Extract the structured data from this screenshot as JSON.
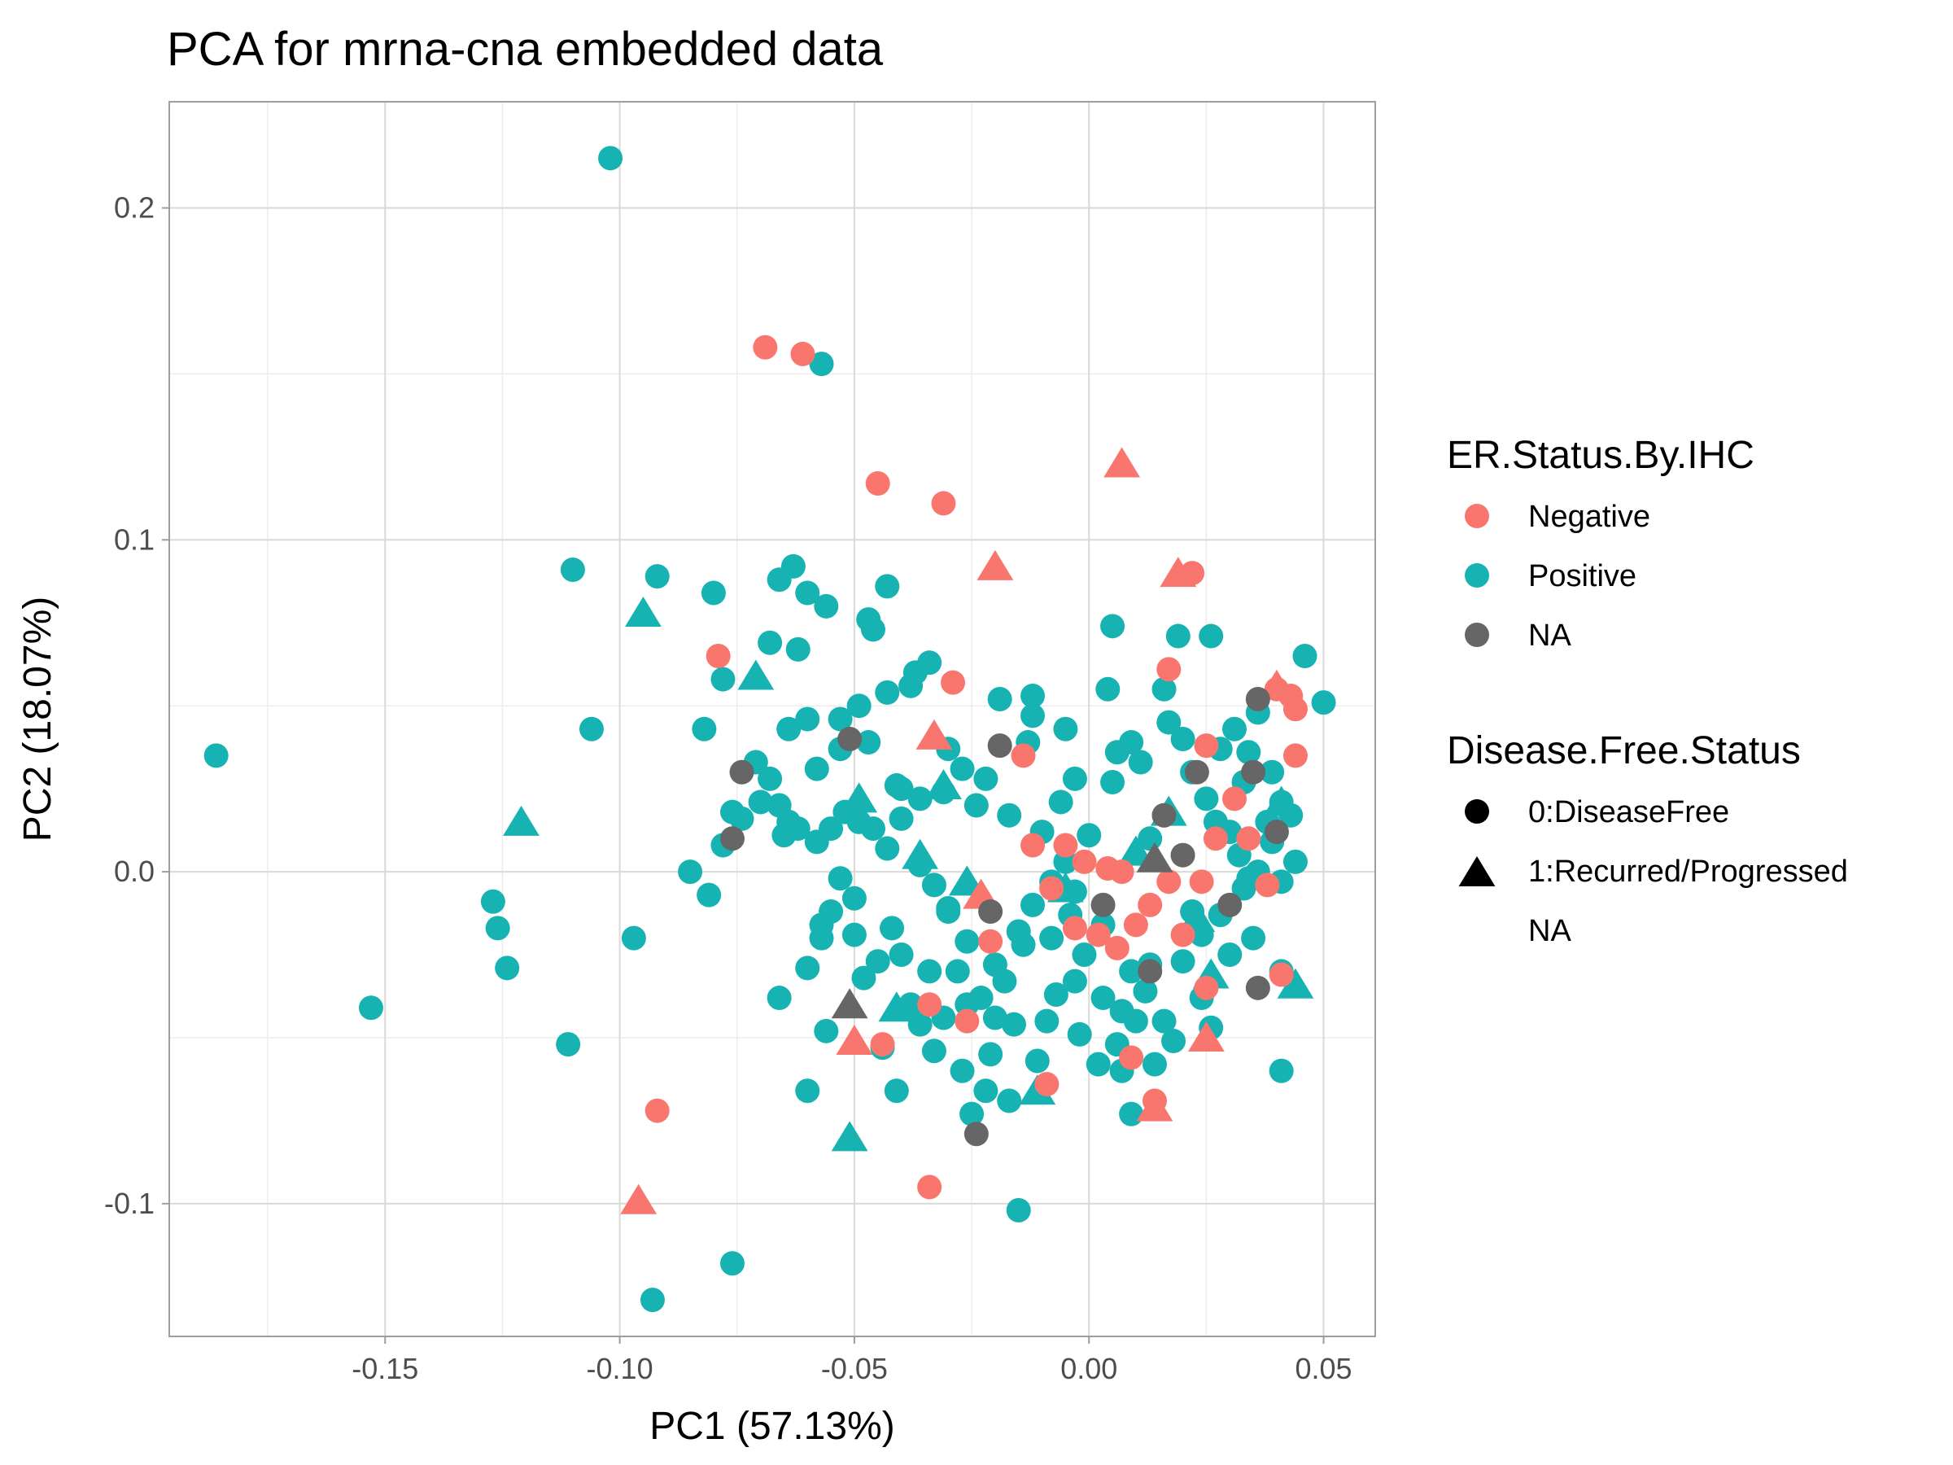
{
  "chart_data": {
    "type": "scatter",
    "title": "PCA for mrna-cna embedded data",
    "xlabel": "PC1 (57.13%)",
    "ylabel": "PC2 (18.07%)",
    "xlim": [
      -0.196,
      0.061
    ],
    "ylim": [
      -0.14,
      0.232
    ],
    "x_ticks": [
      -0.15,
      -0.1,
      -0.05,
      0.0,
      0.05
    ],
    "x_tick_labels": [
      "-0.15",
      "-0.10",
      "-0.05",
      "0.00",
      "0.05"
    ],
    "y_ticks": [
      -0.1,
      0.0,
      0.1,
      0.2
    ],
    "y_tick_labels": [
      "-0.1",
      "0.0",
      "0.1",
      "0.2"
    ],
    "grid": true,
    "legend_position": "right",
    "colors": {
      "Negative": "#F8766D",
      "Positive": "#17B3B3",
      "NA": "#666666"
    },
    "legends": [
      {
        "title": "ER.Status.By.IHC",
        "entries": [
          {
            "label": "Negative",
            "marker": "circle",
            "color": "#F8766D"
          },
          {
            "label": "Positive",
            "marker": "circle",
            "color": "#17B3B3"
          },
          {
            "label": "NA",
            "marker": "circle",
            "color": "#666666"
          }
        ]
      },
      {
        "title": "Disease.Free.Status",
        "entries": [
          {
            "label": "0:DiseaseFree",
            "marker": "circle",
            "color": "#000000"
          },
          {
            "label": "1:Recurred/Progressed",
            "marker": "triangle",
            "color": "#000000"
          },
          {
            "label": "NA",
            "marker": "none",
            "color": "#000000"
          }
        ]
      }
    ],
    "series": [
      {
        "er_status": "Positive",
        "disease_status": "0:DiseaseFree",
        "points": [
          [
            -0.102,
            0.215
          ],
          [
            -0.057,
            0.153
          ],
          [
            -0.186,
            0.035
          ],
          [
            -0.153,
            -0.041
          ],
          [
            -0.127,
            -0.009
          ],
          [
            -0.126,
            -0.017
          ],
          [
            -0.124,
            -0.029
          ],
          [
            -0.11,
            0.091
          ],
          [
            -0.106,
            0.043
          ],
          [
            -0.111,
            -0.052
          ],
          [
            -0.097,
            -0.02
          ],
          [
            -0.093,
            -0.129
          ],
          [
            -0.092,
            0.089
          ],
          [
            -0.08,
            0.084
          ],
          [
            -0.076,
            -0.118
          ],
          [
            -0.082,
            0.043
          ],
          [
            -0.085,
            0.0
          ],
          [
            -0.081,
            -0.007
          ],
          [
            -0.078,
            0.058
          ],
          [
            -0.066,
            0.088
          ],
          [
            -0.063,
            0.092
          ],
          [
            -0.06,
            0.084
          ],
          [
            -0.056,
            0.08
          ],
          [
            -0.068,
            0.069
          ],
          [
            -0.062,
            0.067
          ],
          [
            -0.064,
            0.043
          ],
          [
            -0.06,
            0.046
          ],
          [
            -0.058,
            0.031
          ],
          [
            -0.053,
            0.037
          ],
          [
            -0.047,
            0.076
          ],
          [
            -0.046,
            0.073
          ],
          [
            -0.043,
            0.086
          ],
          [
            -0.037,
            0.06
          ],
          [
            -0.034,
            0.063
          ],
          [
            -0.038,
            0.056
          ],
          [
            -0.043,
            0.054
          ],
          [
            -0.047,
            0.039
          ],
          [
            -0.041,
            0.026
          ],
          [
            -0.036,
            0.022
          ],
          [
            -0.03,
            0.037
          ],
          [
            -0.027,
            0.031
          ],
          [
            -0.022,
            0.028
          ],
          [
            -0.019,
            0.052
          ],
          [
            -0.012,
            0.053
          ],
          [
            -0.012,
            0.047
          ],
          [
            -0.006,
            0.021
          ],
          [
            -0.005,
            0.043
          ],
          [
            -0.003,
            0.028
          ],
          [
            0.005,
            0.027
          ],
          [
            0.004,
            0.055
          ],
          [
            0.005,
            0.074
          ],
          [
            0.019,
            0.071
          ],
          [
            0.026,
            0.071
          ],
          [
            0.016,
            0.055
          ],
          [
            0.046,
            0.065
          ],
          [
            0.05,
            0.051
          ],
          [
            0.036,
            0.048
          ],
          [
            0.031,
            0.043
          ],
          [
            0.028,
            0.037
          ],
          [
            0.034,
            0.036
          ],
          [
            0.039,
            0.03
          ],
          [
            0.041,
            0.021
          ],
          [
            0.043,
            0.017
          ],
          [
            0.039,
            0.009
          ],
          [
            0.044,
            0.003
          ],
          [
            0.041,
            -0.003
          ],
          [
            0.033,
            -0.005
          ],
          [
            0.028,
            -0.013
          ],
          [
            0.024,
            -0.019
          ],
          [
            0.02,
            -0.027
          ],
          [
            0.013,
            -0.028
          ],
          [
            0.009,
            -0.03
          ],
          [
            0.007,
            -0.042
          ],
          [
            0.016,
            -0.045
          ],
          [
            0.024,
            -0.038
          ],
          [
            0.026,
            -0.047
          ],
          [
            0.035,
            -0.02
          ],
          [
            0.041,
            -0.03
          ],
          [
            0.041,
            -0.06
          ],
          [
            0.03,
            -0.025
          ],
          [
            0.009,
            -0.073
          ],
          [
            0.007,
            -0.06
          ],
          [
            0.014,
            -0.058
          ],
          [
            0.003,
            -0.038
          ],
          [
            -0.001,
            -0.025
          ],
          [
            -0.004,
            -0.013
          ],
          [
            -0.008,
            -0.02
          ],
          [
            -0.014,
            -0.022
          ],
          [
            -0.02,
            -0.028
          ],
          [
            -0.026,
            -0.021
          ],
          [
            -0.03,
            -0.012
          ],
          [
            -0.034,
            -0.03
          ],
          [
            -0.04,
            -0.025
          ],
          [
            -0.045,
            -0.027
          ],
          [
            -0.048,
            -0.032
          ],
          [
            -0.05,
            -0.019
          ],
          [
            -0.055,
            -0.012
          ],
          [
            -0.057,
            -0.02
          ],
          [
            -0.06,
            -0.029
          ],
          [
            -0.066,
            -0.038
          ],
          [
            -0.06,
            -0.066
          ],
          [
            -0.056,
            -0.048
          ],
          [
            -0.044,
            -0.053
          ],
          [
            -0.041,
            -0.066
          ],
          [
            -0.036,
            -0.046
          ],
          [
            -0.033,
            -0.054
          ],
          [
            -0.027,
            -0.06
          ],
          [
            -0.022,
            -0.066
          ],
          [
            -0.025,
            -0.073
          ],
          [
            -0.017,
            -0.069
          ],
          [
            -0.011,
            -0.057
          ],
          [
            -0.015,
            -0.102
          ],
          [
            -0.021,
            -0.055
          ],
          [
            -0.016,
            -0.046
          ],
          [
            -0.009,
            -0.045
          ],
          [
            -0.002,
            -0.049
          ],
          [
            0.002,
            -0.058
          ],
          [
            0.01,
            -0.045
          ],
          [
            0.018,
            -0.051
          ],
          [
            -0.07,
            0.021
          ],
          [
            -0.074,
            0.016
          ],
          [
            -0.066,
            0.02
          ],
          [
            -0.064,
            0.015
          ],
          [
            -0.062,
            0.013
          ],
          [
            -0.058,
            0.009
          ],
          [
            -0.055,
            0.013
          ],
          [
            -0.052,
            0.018
          ],
          [
            -0.049,
            0.015
          ],
          [
            -0.046,
            0.013
          ],
          [
            -0.043,
            0.007
          ],
          [
            -0.04,
            0.016
          ],
          [
            -0.036,
            0.002
          ],
          [
            -0.033,
            -0.004
          ],
          [
            -0.03,
            -0.011
          ],
          [
            -0.028,
            -0.03
          ],
          [
            -0.023,
            -0.038
          ],
          [
            -0.018,
            -0.033
          ],
          [
            -0.015,
            -0.018
          ],
          [
            -0.012,
            -0.01
          ],
          [
            -0.01,
            0.012
          ],
          [
            -0.008,
            -0.003
          ],
          [
            -0.005,
            0.003
          ],
          [
            -0.003,
            -0.006
          ],
          [
            0.0,
            0.011
          ],
          [
            0.003,
            -0.016
          ],
          [
            0.006,
            0.036
          ],
          [
            0.009,
            0.039
          ],
          [
            0.011,
            0.033
          ],
          [
            0.013,
            0.01
          ],
          [
            0.017,
            0.045
          ],
          [
            0.02,
            0.04
          ],
          [
            0.022,
            0.03
          ],
          [
            0.025,
            0.022
          ],
          [
            0.027,
            0.015
          ],
          [
            0.03,
            0.012
          ],
          [
            0.032,
            0.005
          ],
          [
            0.034,
            -0.002
          ],
          [
            0.036,
            0.0
          ],
          [
            0.038,
            0.015
          ],
          [
            0.033,
            0.027
          ],
          [
            -0.071,
            0.033
          ],
          [
            -0.068,
            0.028
          ],
          [
            -0.065,
            0.011
          ],
          [
            -0.078,
            0.008
          ],
          [
            -0.076,
            0.018
          ],
          [
            -0.053,
            0.046
          ],
          [
            -0.049,
            0.05
          ],
          [
            -0.04,
            0.025
          ],
          [
            -0.031,
            0.024
          ],
          [
            -0.024,
            0.02
          ],
          [
            -0.017,
            0.017
          ],
          [
            -0.013,
            0.039
          ],
          [
            -0.053,
            -0.002
          ],
          [
            -0.05,
            -0.008
          ],
          [
            -0.057,
            -0.016
          ],
          [
            -0.042,
            -0.017
          ],
          [
            -0.038,
            -0.04
          ],
          [
            -0.031,
            -0.044
          ],
          [
            -0.026,
            -0.04
          ],
          [
            -0.02,
            -0.044
          ],
          [
            -0.007,
            -0.037
          ],
          [
            -0.003,
            -0.033
          ],
          [
            0.006,
            -0.052
          ],
          [
            0.012,
            -0.036
          ],
          [
            0.022,
            -0.012
          ]
        ]
      },
      {
        "er_status": "Positive",
        "disease_status": "1:Recurred/Progressed",
        "points": [
          [
            -0.121,
            0.015
          ],
          [
            -0.095,
            0.078
          ],
          [
            -0.071,
            0.059
          ],
          [
            -0.049,
            0.022
          ],
          [
            -0.031,
            0.026
          ],
          [
            -0.036,
            0.005
          ],
          [
            -0.026,
            -0.003
          ],
          [
            -0.051,
            -0.08
          ],
          [
            -0.011,
            -0.066
          ],
          [
            -0.041,
            -0.041
          ],
          [
            -0.005,
            -0.005
          ],
          [
            0.01,
            0.006
          ],
          [
            0.026,
            -0.031
          ],
          [
            0.044,
            -0.034
          ],
          [
            0.041,
            0.021
          ],
          [
            0.017,
            0.018
          ],
          [
            0.023,
            -0.014
          ]
        ]
      },
      {
        "er_status": "Negative",
        "disease_status": "0:DiseaseFree",
        "points": [
          [
            -0.069,
            0.158
          ],
          [
            -0.061,
            0.156
          ],
          [
            -0.045,
            0.117
          ],
          [
            -0.031,
            0.111
          ],
          [
            -0.079,
            0.065
          ],
          [
            -0.029,
            0.057
          ],
          [
            -0.092,
            -0.072
          ],
          [
            -0.034,
            -0.095
          ],
          [
            -0.044,
            -0.052
          ],
          [
            -0.034,
            -0.04
          ],
          [
            -0.009,
            -0.064
          ],
          [
            -0.014,
            0.035
          ],
          [
            0.022,
            0.09
          ],
          [
            0.017,
            0.061
          ],
          [
            0.025,
            0.038
          ],
          [
            0.04,
            0.055
          ],
          [
            0.043,
            0.053
          ],
          [
            0.044,
            0.049
          ],
          [
            0.044,
            0.035
          ],
          [
            0.031,
            0.022
          ],
          [
            0.027,
            0.01
          ],
          [
            0.02,
            0.005
          ],
          [
            0.017,
            -0.003
          ],
          [
            0.013,
            -0.01
          ],
          [
            0.01,
            -0.016
          ],
          [
            0.006,
            -0.023
          ],
          [
            0.002,
            -0.019
          ],
          [
            -0.003,
            -0.017
          ],
          [
            -0.008,
            -0.005
          ],
          [
            -0.012,
            0.008
          ],
          [
            -0.021,
            -0.021
          ],
          [
            -0.026,
            -0.045
          ],
          [
            -0.005,
            0.008
          ],
          [
            0.007,
            0.0
          ],
          [
            0.016,
            0.017
          ],
          [
            0.02,
            -0.019
          ],
          [
            0.025,
            -0.035
          ],
          [
            0.014,
            -0.069
          ],
          [
            0.009,
            -0.056
          ],
          [
            0.038,
            -0.004
          ],
          [
            0.041,
            -0.031
          ],
          [
            0.024,
            -0.003
          ],
          [
            0.034,
            0.01
          ],
          [
            0.004,
            0.001
          ],
          [
            -0.001,
            0.003
          ]
        ]
      },
      {
        "er_status": "Negative",
        "disease_status": "1:Recurred/Progressed",
        "points": [
          [
            0.007,
            0.123
          ],
          [
            -0.02,
            0.092
          ],
          [
            0.019,
            0.09
          ],
          [
            -0.033,
            0.041
          ],
          [
            -0.096,
            -0.099
          ],
          [
            -0.05,
            -0.051
          ],
          [
            0.025,
            -0.05
          ],
          [
            0.014,
            -0.071
          ],
          [
            0.04,
            0.056
          ],
          [
            -0.023,
            -0.007
          ]
        ]
      },
      {
        "er_status": "NA",
        "disease_status": "0:DiseaseFree",
        "points": [
          [
            -0.074,
            0.03
          ],
          [
            -0.076,
            0.01
          ],
          [
            -0.051,
            0.04
          ],
          [
            -0.019,
            0.038
          ],
          [
            -0.021,
            -0.012
          ],
          [
            -0.024,
            -0.079
          ],
          [
            0.036,
            0.052
          ],
          [
            0.023,
            0.03
          ],
          [
            0.035,
            0.03
          ],
          [
            0.04,
            0.012
          ],
          [
            0.016,
            0.017
          ],
          [
            0.02,
            0.005
          ],
          [
            0.013,
            -0.03
          ],
          [
            0.03,
            -0.01
          ],
          [
            0.036,
            -0.035
          ],
          [
            0.003,
            -0.01
          ]
        ]
      },
      {
        "er_status": "NA",
        "disease_status": "1:Recurred/Progressed",
        "points": [
          [
            0.014,
            0.004
          ],
          [
            -0.051,
            -0.04
          ]
        ]
      }
    ]
  }
}
